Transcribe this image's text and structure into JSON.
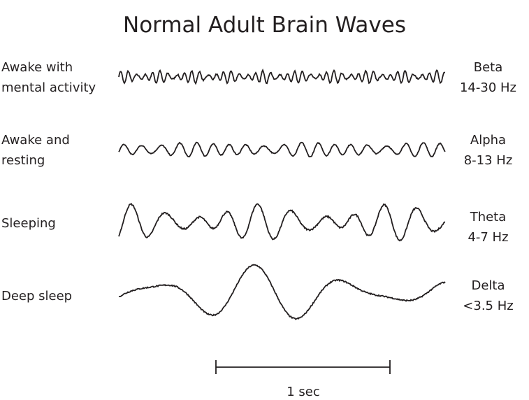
{
  "title": "Normal Adult Brain Waves",
  "rows": [
    {
      "state_line1": "Awake with",
      "state_line2": "mental activity",
      "band": "Beta",
      "range": "14-30 Hz"
    },
    {
      "state_line1": "Awake and",
      "state_line2": "resting",
      "band": "Alpha",
      "range": "8-13 Hz"
    },
    {
      "state_line1": "Sleeping",
      "state_line2": "",
      "band": "Theta",
      "range": "4-7 Hz"
    },
    {
      "state_line1": "Deep sleep",
      "state_line2": "",
      "band": "Delta",
      "range": "<3.5 Hz"
    }
  ],
  "scale_bar": {
    "label": "1 sec"
  },
  "colors": {
    "ink": "#231f20"
  }
}
